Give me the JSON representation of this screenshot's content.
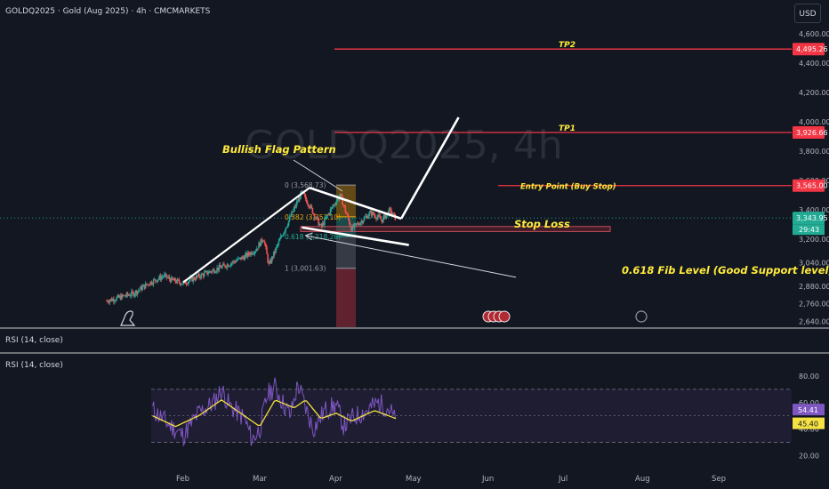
{
  "header": {
    "symbol_line": "GOLDQ2025 · Gold (Aug 2025) · 4h · CMCMARKETS",
    "currency_button": "USD"
  },
  "watermark": "GOLDQ2025, 4h",
  "colors": {
    "background": "#131722",
    "candle_up": "#26a69a",
    "candle_down": "#ef5350",
    "target_line": "#f23645",
    "annotation": "#ffeb3b",
    "rsi": "#7e57c2",
    "rsi_ma": "#f5e142"
  },
  "price_axis": {
    "ticks": [
      "4,600.00",
      "4,400.00",
      "4,200.00",
      "4,000.00",
      "3,800.00",
      "3,600.00",
      "3,400.00",
      "3,200.00",
      "3,040.00",
      "2,880.00",
      "2,760.00",
      "2,640.00"
    ],
    "tick_values": [
      4600,
      4400,
      4200,
      4000,
      3800,
      3600,
      3400,
      3200,
      3040,
      2880,
      2760,
      2640
    ]
  },
  "price_badges": [
    {
      "label": "4,495.26",
      "value": 4495.26,
      "color": "#f23645"
    },
    {
      "label": "3,926.66",
      "value": 3926.66,
      "color": "#f23645"
    },
    {
      "label": "3,565.00",
      "value": 3565.0,
      "color": "#f23645"
    },
    {
      "label": "3,343.95",
      "value": 3343.95,
      "color": "#22ab94"
    }
  ],
  "countdown": "29:43",
  "time_axis": {
    "labels": [
      "Feb",
      "Mar",
      "Apr",
      "May",
      "Jun",
      "Jul",
      "Aug",
      "Sep"
    ]
  },
  "annotations": {
    "tp2": "TP2",
    "tp1": "TP1",
    "entry": "Entry Point  (Buy Stop)",
    "flag": "Bullish Flag Pattern",
    "stop": "Stop Loss",
    "fib618_note": "0.618 Fib Level (Good Support level)"
  },
  "fib_levels": [
    {
      "label": "0 (3,568.73)",
      "value": 3568.73,
      "color": "#9598a1"
    },
    {
      "label": "0.382 (3,352.10)",
      "value": 3352.1,
      "color": "#f7a600"
    },
    {
      "label": "0.618 (3,218.26)",
      "value": 3218.26,
      "color": "#22ab94"
    },
    {
      "label": "1 (3,001.63)",
      "value": 3001.63,
      "color": "#9598a1"
    }
  ],
  "rsi_panel": {
    "label_top": "RSI (14, close)",
    "label": "RSI (14, close)",
    "ticks": [
      "80.00",
      "60.00",
      "40.00",
      "20.00"
    ],
    "tick_values": [
      80,
      60,
      40,
      20
    ],
    "rsi_value": "54.41",
    "ma_value": "45.40"
  },
  "chart_data": {
    "type": "line",
    "title": "GOLDQ2025 · Gold (Aug 2025) · 4h · CMCMARKETS",
    "price_ylim": [
      2600,
      4660
    ],
    "rsi_ylim": [
      15,
      90
    ],
    "months": [
      "Feb",
      "Mar",
      "Apr",
      "May",
      "Jun",
      "Jul",
      "Aug",
      "Sep"
    ],
    "price_path": [
      [
        0,
        2780
      ],
      [
        0.15,
        2800
      ],
      [
        0.35,
        2830
      ],
      [
        0.55,
        2900
      ],
      [
        0.75,
        2950
      ],
      [
        0.85,
        2920
      ],
      [
        1.0,
        2900
      ],
      [
        1.15,
        2935
      ],
      [
        1.4,
        2990
      ],
      [
        1.55,
        3020
      ],
      [
        1.8,
        3080
      ],
      [
        1.95,
        3130
      ],
      [
        2.05,
        3210
      ],
      [
        2.12,
        3020
      ],
      [
        2.25,
        3180
      ],
      [
        2.4,
        3350
      ],
      [
        2.55,
        3520
      ],
      [
        2.65,
        3430
      ],
      [
        2.8,
        3280
      ],
      [
        2.95,
        3420
      ],
      [
        3.05,
        3500
      ],
      [
        3.2,
        3270
      ],
      [
        3.3,
        3310
      ],
      [
        3.45,
        3380
      ],
      [
        3.6,
        3330
      ],
      [
        3.7,
        3396
      ],
      [
        3.78,
        3340
      ]
    ],
    "rsi_path": [
      [
        0,
        45
      ],
      [
        0.2,
        58
      ],
      [
        0.4,
        48
      ],
      [
        0.6,
        55
      ],
      [
        0.8,
        44
      ],
      [
        1.0,
        35
      ],
      [
        1.2,
        52
      ],
      [
        1.4,
        60
      ],
      [
        1.5,
        70
      ],
      [
        1.6,
        58
      ],
      [
        1.8,
        48
      ],
      [
        1.9,
        32
      ],
      [
        2.0,
        40
      ],
      [
        2.1,
        66
      ],
      [
        2.2,
        72
      ],
      [
        2.3,
        60
      ],
      [
        2.4,
        50
      ],
      [
        2.5,
        74
      ],
      [
        2.6,
        56
      ],
      [
        2.7,
        40
      ],
      [
        2.85,
        54
      ],
      [
        3.0,
        58
      ],
      [
        3.1,
        42
      ],
      [
        3.2,
        48
      ],
      [
        3.4,
        54
      ],
      [
        3.55,
        60
      ],
      [
        3.7,
        55
      ],
      [
        3.78,
        45
      ]
    ],
    "rsi_ma_path": [
      [
        0,
        48
      ],
      [
        0.3,
        52
      ],
      [
        0.6,
        50
      ],
      [
        0.9,
        42
      ],
      [
        1.2,
        50
      ],
      [
        1.5,
        62
      ],
      [
        1.8,
        50
      ],
      [
        2.0,
        42
      ],
      [
        2.2,
        62
      ],
      [
        2.45,
        56
      ],
      [
        2.6,
        62
      ],
      [
        2.8,
        48
      ],
      [
        3.0,
        52
      ],
      [
        3.2,
        46
      ],
      [
        3.5,
        54
      ],
      [
        3.78,
        48
      ]
    ],
    "drawings": {
      "flag_pole": [
        [
          1.0,
          2905
        ],
        [
          2.65,
          3550
        ]
      ],
      "flag_upper": [
        [
          2.65,
          3550
        ],
        [
          3.85,
          3340
        ]
      ],
      "flag_lower": [
        [
          2.55,
          3280
        ],
        [
          3.95,
          3160
        ]
      ],
      "projection": [
        [
          3.85,
          3340
        ],
        [
          4.6,
          4030
        ]
      ],
      "fib_arrow": [
        [
          2.6,
          3225
        ],
        [
          5.35,
          2940
        ]
      ],
      "targets": {
        "tp2": 4495.26,
        "tp1": 3926.66,
        "entry": 3565.0
      },
      "stop_zone": [
        3252,
        3286
      ]
    },
    "rsi_band": [
      30,
      70
    ],
    "legend": "none",
    "grid": false
  }
}
